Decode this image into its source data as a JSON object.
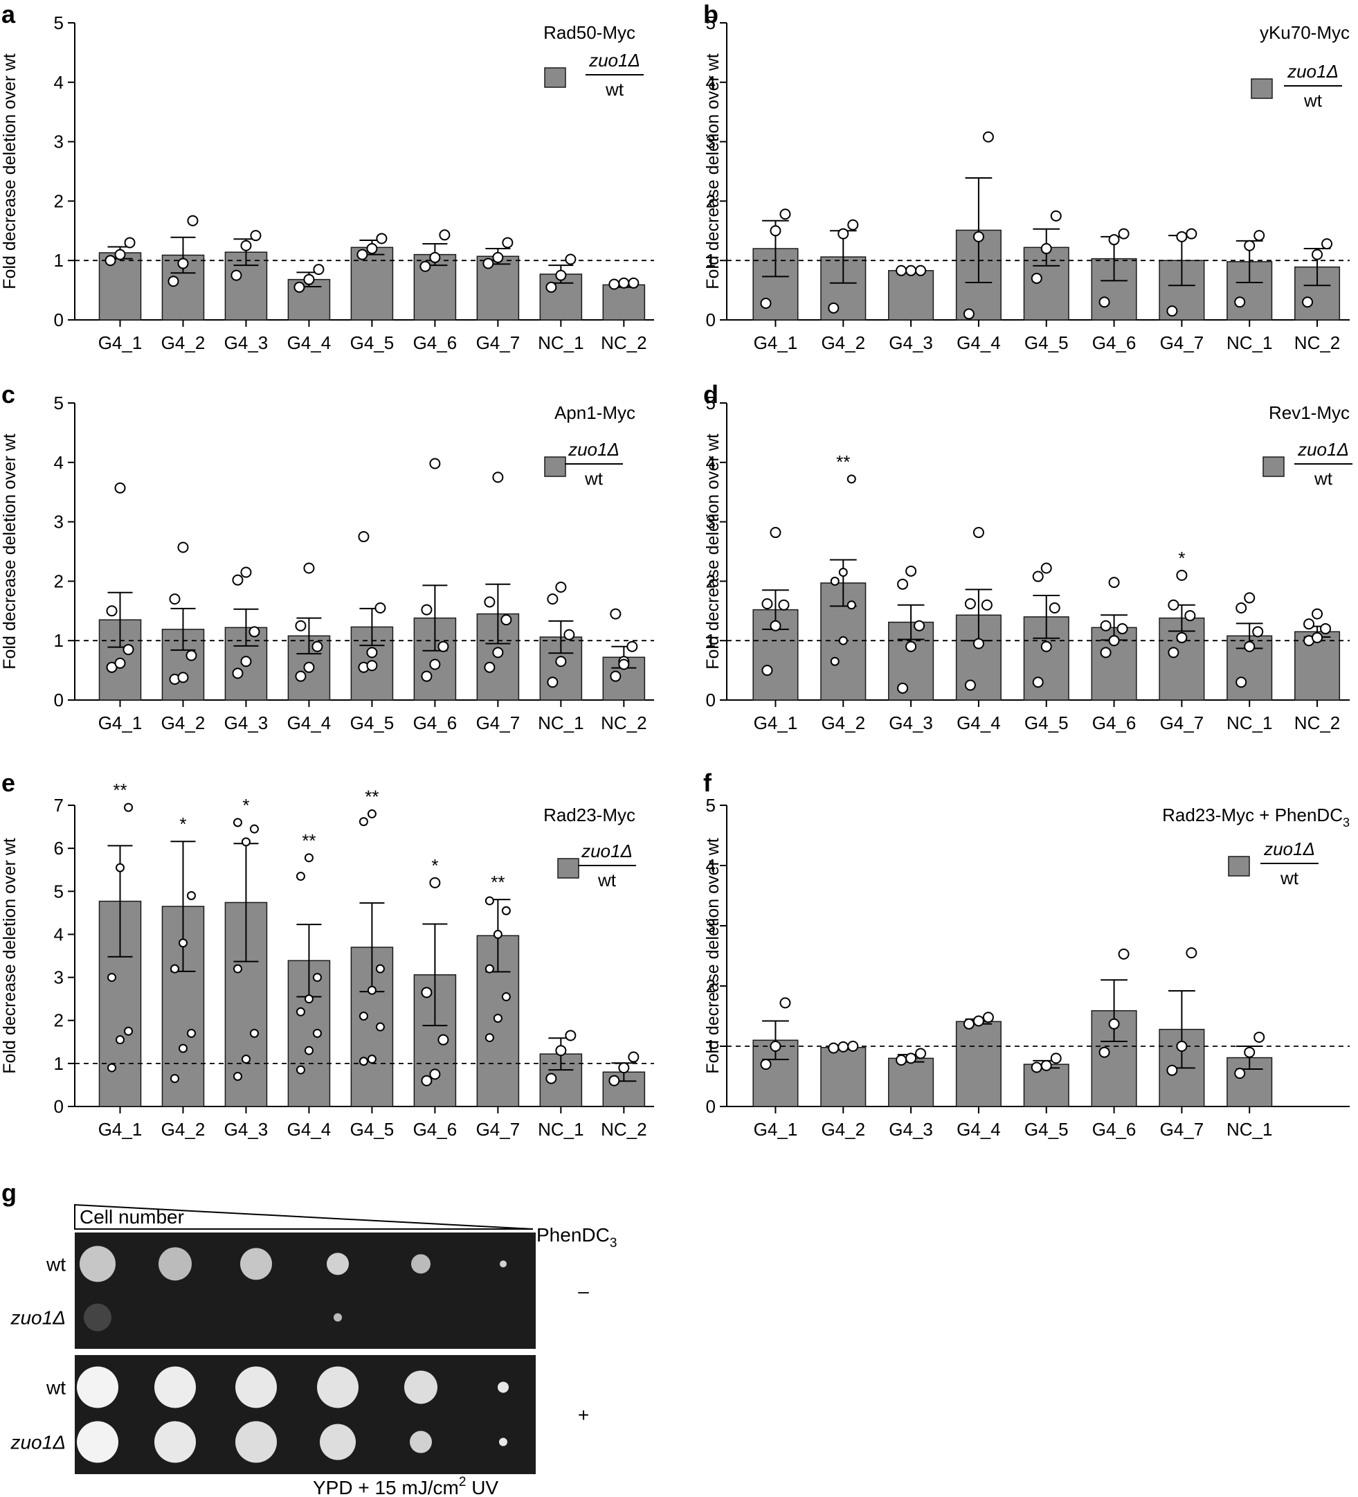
{
  "y_axis_label": "Fold decrease deletion over wt",
  "legend": {
    "numerator": "zuo1Δ",
    "denominator": "wt",
    "color": "#8a8a8a"
  },
  "bar_color": "#8a8a8a",
  "chart_data": [
    {
      "panel": "a",
      "type": "bar",
      "title": "Rad50-Myc",
      "categories": [
        "G4_1",
        "G4_2",
        "G4_3",
        "G4_4",
        "G4_5",
        "G4_6",
        "G4_7",
        "NC_1",
        "NC_2"
      ],
      "values": [
        1.13,
        1.09,
        1.14,
        0.68,
        1.22,
        1.1,
        1.07,
        0.77,
        0.59
      ],
      "error": [
        0.1,
        0.3,
        0.22,
        0.12,
        0.12,
        0.18,
        0.13,
        0.15,
        0.04
      ],
      "points": [
        [
          1.0,
          1.1,
          1.3
        ],
        [
          0.65,
          0.95,
          1.67
        ],
        [
          0.75,
          1.25,
          1.42
        ],
        [
          0.55,
          0.68,
          0.85
        ],
        [
          1.1,
          1.2,
          1.37
        ],
        [
          0.9,
          1.05,
          1.43
        ],
        [
          0.95,
          1.05,
          1.3
        ],
        [
          0.55,
          0.75,
          1.02
        ],
        [
          0.6,
          0.62,
          0.62
        ]
      ],
      "significance": [
        "",
        "",
        "",
        "",
        "",
        "",
        "",
        "",
        ""
      ],
      "ylim": [
        0,
        5
      ],
      "yticks": [
        0,
        1,
        2,
        3,
        4,
        5
      ],
      "reference_line": 1
    },
    {
      "panel": "b",
      "type": "bar",
      "title": "yKu70-Myc",
      "categories": [
        "G4_1",
        "G4_2",
        "G4_3",
        "G4_4",
        "G4_5",
        "G4_6",
        "G4_7",
        "NC_1",
        "NC_2"
      ],
      "values": [
        1.2,
        1.06,
        0.83,
        1.51,
        1.22,
        1.03,
        1.0,
        0.98,
        0.89
      ],
      "error": [
        0.47,
        0.44,
        0.01,
        0.88,
        0.31,
        0.37,
        0.42,
        0.35,
        0.31
      ],
      "points": [
        [
          0.28,
          1.5,
          1.78
        ],
        [
          0.2,
          1.45,
          1.6
        ],
        [
          0.83,
          0.83,
          0.83
        ],
        [
          0.1,
          1.4,
          3.08
        ],
        [
          0.7,
          1.2,
          1.75
        ],
        [
          0.3,
          1.35,
          1.45
        ],
        [
          0.15,
          1.4,
          1.45
        ],
        [
          0.3,
          1.25,
          1.42
        ],
        [
          0.3,
          1.1,
          1.28
        ]
      ],
      "significance": [
        "",
        "",
        "",
        "",
        "",
        "",
        "",
        "",
        ""
      ],
      "ylim": [
        0,
        5
      ],
      "yticks": [
        0,
        1,
        2,
        3,
        4,
        5
      ],
      "reference_line": 1
    },
    {
      "panel": "c",
      "type": "bar",
      "title": "Apn1-Myc",
      "categories": [
        "G4_1",
        "G4_2",
        "G4_3",
        "G4_4",
        "G4_5",
        "G4_6",
        "G4_7",
        "NC_1",
        "NC_2"
      ],
      "values": [
        1.35,
        1.19,
        1.22,
        1.08,
        1.23,
        1.38,
        1.45,
        1.06,
        0.72
      ],
      "error": [
        0.46,
        0.35,
        0.31,
        0.3,
        0.31,
        0.55,
        0.5,
        0.27,
        0.18
      ],
      "points": [
        [
          0.55,
          0.62,
          0.85,
          1.5,
          3.57
        ],
        [
          0.35,
          0.38,
          0.75,
          1.7,
          2.57
        ],
        [
          0.45,
          0.65,
          1.15,
          2.02,
          2.15
        ],
        [
          0.4,
          0.55,
          0.9,
          1.25,
          2.22
        ],
        [
          0.55,
          0.8,
          1.55,
          2.75,
          0.58
        ],
        [
          0.4,
          0.6,
          0.9,
          1.52,
          3.98
        ],
        [
          0.55,
          0.8,
          1.35,
          1.65,
          3.75
        ],
        [
          0.3,
          0.65,
          1.1,
          1.7,
          1.9
        ],
        [
          0.4,
          0.65,
          0.9,
          1.45,
          0.6
        ]
      ],
      "significance": [
        "",
        "",
        "",
        "",
        "",
        "",
        "",
        "",
        ""
      ],
      "ylim": [
        0,
        5
      ],
      "yticks": [
        0,
        1,
        2,
        3,
        4,
        5
      ],
      "reference_line": 1
    },
    {
      "panel": "d",
      "type": "bar",
      "title": "Rev1-Myc",
      "categories": [
        "G4_1",
        "G4_2",
        "G4_3",
        "G4_4",
        "G4_5",
        "G4_6",
        "G4_7",
        "NC_1",
        "NC_2"
      ],
      "values": [
        1.52,
        1.97,
        1.31,
        1.43,
        1.4,
        1.22,
        1.38,
        1.08,
        1.15
      ],
      "error": [
        0.33,
        0.39,
        0.29,
        0.43,
        0.36,
        0.21,
        0.22,
        0.21,
        0.09
      ],
      "points": [
        [
          0.5,
          1.25,
          1.6,
          1.62,
          2.82
        ],
        [
          0.65,
          1.0,
          1.6,
          2.0,
          2.15,
          3.72
        ],
        [
          0.2,
          0.9,
          1.25,
          1.95,
          2.17
        ],
        [
          0.25,
          0.95,
          1.6,
          1.62,
          2.82
        ],
        [
          0.3,
          0.9,
          1.55,
          2.08,
          2.22
        ],
        [
          0.8,
          1.0,
          1.2,
          1.25,
          1.98
        ],
        [
          0.8,
          1.05,
          1.42,
          1.6,
          2.1
        ],
        [
          0.3,
          0.9,
          1.15,
          1.55,
          1.72
        ],
        [
          1.0,
          1.05,
          1.2,
          1.28,
          1.45
        ]
      ],
      "significance": [
        "",
        "**",
        "",
        "",
        "",
        "",
        "*",
        "",
        ""
      ],
      "ylim": [
        0,
        5
      ],
      "yticks": [
        0,
        1,
        2,
        3,
        4,
        5
      ],
      "reference_line": 1
    },
    {
      "panel": "e",
      "type": "bar",
      "title": "Rad23-Myc",
      "categories": [
        "G4_1",
        "G4_2",
        "G4_3",
        "G4_4",
        "G4_5",
        "G4_6",
        "G4_7",
        "NC_1",
        "NC_2"
      ],
      "values": [
        4.77,
        4.65,
        4.74,
        3.39,
        3.7,
        3.06,
        3.97,
        1.22,
        0.8
      ],
      "error": [
        1.29,
        1.51,
        1.37,
        0.84,
        1.03,
        1.18,
        0.84,
        0.37,
        0.21
      ],
      "points": [
        [
          0.9,
          1.55,
          1.75,
          3.0,
          5.55,
          6.95
        ],
        [
          0.65,
          1.35,
          1.7,
          3.2,
          3.8,
          4.9
        ],
        [
          0.7,
          1.1,
          1.7,
          3.2,
          6.15,
          6.45,
          6.6
        ],
        [
          0.85,
          1.3,
          1.7,
          2.2,
          2.5,
          3.0,
          5.35,
          5.78
        ],
        [
          1.05,
          1.1,
          1.85,
          2.1,
          2.7,
          3.2,
          6.62,
          6.8
        ],
        [
          0.6,
          0.75,
          1.55,
          2.65,
          5.2
        ],
        [
          1.6,
          2.05,
          2.55,
          3.2,
          4.0,
          4.55,
          4.78
        ],
        [
          0.65,
          1.3,
          1.65
        ],
        [
          0.6,
          0.9,
          1.15
        ]
      ],
      "significance": [
        "**",
        "*",
        "*",
        "**",
        "**",
        "*",
        "**",
        "",
        ""
      ],
      "ylim": [
        0,
        7
      ],
      "yticks": [
        0,
        1,
        2,
        3,
        4,
        5,
        6,
        7
      ],
      "reference_line": 1
    },
    {
      "panel": "f",
      "type": "bar",
      "title": "Rad23-Myc + PhenDC",
      "title_subscript": "3",
      "categories": [
        "G4_1",
        "G4_2",
        "G4_3",
        "G4_4",
        "G4_5",
        "G4_6",
        "G4_7",
        "NC_1"
      ],
      "values": [
        1.1,
        0.98,
        0.8,
        1.41,
        0.7,
        1.59,
        1.28,
        0.81
      ],
      "error": [
        0.32,
        0.03,
        0.06,
        0.04,
        0.06,
        0.51,
        0.64,
        0.19
      ],
      "points": [
        [
          0.7,
          1.0,
          1.72
        ],
        [
          0.97,
          0.99,
          1.0
        ],
        [
          0.77,
          0.8,
          0.88
        ],
        [
          1.37,
          1.42,
          1.48
        ],
        [
          0.65,
          0.68,
          0.8
        ],
        [
          0.9,
          1.37,
          2.53
        ],
        [
          0.6,
          1.0,
          2.55
        ],
        [
          0.55,
          0.9,
          1.15
        ]
      ],
      "significance": [
        "",
        "",
        "",
        "",
        "",
        "",
        "",
        ""
      ],
      "ylim": [
        0,
        5
      ],
      "yticks": [
        0,
        1,
        2,
        3,
        4,
        5
      ],
      "reference_line": 1
    }
  ],
  "panel_g": {
    "letter": "g",
    "triangle_label": "Cell number",
    "treatment_label": "PhenDC",
    "treatment_subscript": "3",
    "rows_top": [
      "wt",
      "zuo1Δ"
    ],
    "rows_bottom": [
      "wt",
      "zuo1Δ"
    ],
    "sign_top": "–",
    "sign_bottom": "+",
    "caption": "YPD + 15 mJ/cm",
    "caption_superscript": "2",
    "caption_suffix": " UV"
  }
}
